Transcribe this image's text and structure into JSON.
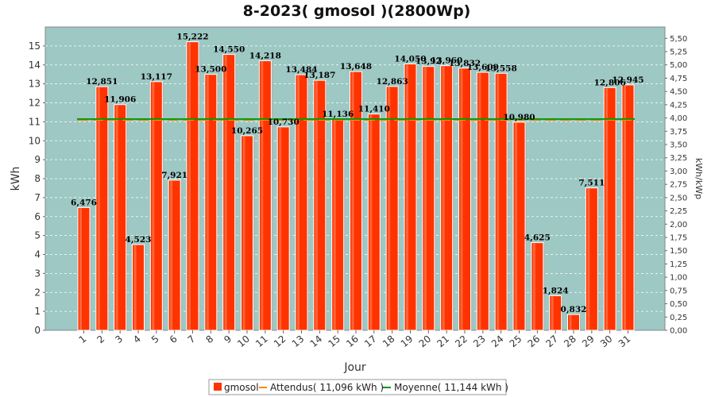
{
  "chart_data": {
    "type": "bar",
    "title": "8-2023( gmosol )(2800Wp)",
    "xlabel": "Jour",
    "ylabel": "kWh",
    "ylabel_right": "kWh/kWp",
    "ylim": [
      0,
      16
    ],
    "ylim_right": [
      0,
      5.714
    ],
    "yticks": [
      "0",
      "1",
      "2",
      "3",
      "4",
      "5",
      "6",
      "7",
      "8",
      "9",
      "10",
      "11",
      "12",
      "13",
      "14",
      "15"
    ],
    "yticks_right": [
      "0,00",
      "0,25",
      "0,50",
      "0,75",
      "1,00",
      "1,25",
      "1,50",
      "1,75",
      "2,00",
      "2,25",
      "2,50",
      "2,75",
      "3,00",
      "3,25",
      "3,50",
      "3,75",
      "4,00",
      "4,25",
      "4,50",
      "4,75",
      "5,00",
      "5,25",
      "5,50"
    ],
    "categories": [
      "1",
      "2",
      "3",
      "4",
      "5",
      "6",
      "7",
      "8",
      "9",
      "10",
      "11",
      "12",
      "13",
      "14",
      "15",
      "16",
      "17",
      "18",
      "19",
      "20",
      "21",
      "22",
      "23",
      "24",
      "25",
      "26",
      "27",
      "28",
      "29",
      "30",
      "31"
    ],
    "series": [
      {
        "name": "gmosol",
        "color": "#ff3300",
        "values": [
          6.476,
          12.851,
          11.906,
          4.523,
          13.117,
          7.921,
          15.222,
          13.5,
          14.55,
          10.265,
          14.218,
          10.73,
          13.484,
          13.187,
          11.136,
          13.648,
          11.41,
          12.863,
          14.05,
          13.92,
          13.96,
          13.832,
          13.609,
          13.558,
          10.98,
          4.625,
          1.824,
          0.832,
          7.511,
          12.806,
          12.945
        ],
        "labels": [
          "6,476",
          "12,851",
          "11,906",
          "4,523",
          "13,117",
          "7,921",
          "15,222",
          "13,500",
          "14,550",
          "10,265",
          "14,218",
          "10,730",
          "13,484",
          "13,187",
          "11,136",
          "13,648",
          "11,410",
          "12,863",
          "14,050",
          "13,92",
          "13,960",
          "13,832",
          "13,609",
          "13,558",
          "10,980",
          "4,625",
          "1,824",
          "0,832",
          "7,511",
          "12,806",
          "12,945"
        ]
      }
    ],
    "reference_lines": [
      {
        "name": "Attendus( 11,096 kWh )",
        "value": 11.096,
        "color": "#ff8800",
        "style": "dashed"
      },
      {
        "name": "Moyenne( 11,144 kWh )",
        "value": 11.144,
        "color": "#009900",
        "style": "solid"
      }
    ],
    "grid": true,
    "legend_position": "bottom-center",
    "colors": {
      "plot_background": "#9dc8c4",
      "bar": "#ff3300",
      "bar_highlight": "#ff7a50"
    }
  }
}
